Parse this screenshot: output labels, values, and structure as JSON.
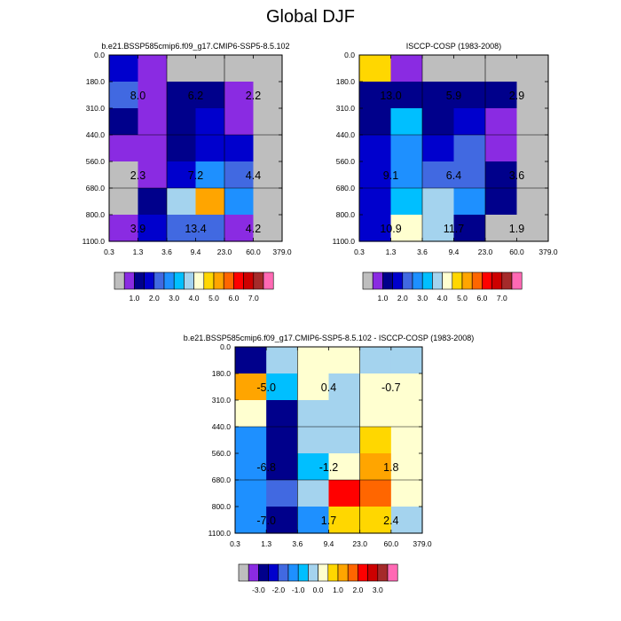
{
  "figure_title": "Global DJF",
  "chart_data": [
    {
      "type": "heatmap",
      "title": "b.e21.BSSP585cmip6.f09_g17.CMIP6-SSP5-8.5.102",
      "x_ticks": [
        "0.3",
        "1.3",
        "3.6",
        "9.4",
        "23.0",
        "60.0",
        "379.0"
      ],
      "y_ticks": [
        "0.0",
        "180.0",
        "310.0",
        "440.0",
        "560.0",
        "680.0",
        "800.0",
        "1100.0"
      ],
      "cells": [
        [
          "#0000cd",
          "#8a2be2",
          "#bebebe",
          "#bebebe",
          "#bebebe",
          "#bebebe"
        ],
        [
          "#4169e1",
          "#8a2be2",
          "#00008b",
          "#00008b",
          "#8a2be2",
          "#bebebe"
        ],
        [
          "#00008b",
          "#8a2be2",
          "#00008b",
          "#0000cd",
          "#8a2be2",
          "#bebebe"
        ],
        [
          "#8a2be2",
          "#8a2be2",
          "#00008b",
          "#0000cd",
          "#0000cd",
          "#bebebe"
        ],
        [
          "#bebebe",
          "#8a2be2",
          "#0000cd",
          "#1e90ff",
          "#4169e1",
          "#bebebe"
        ],
        [
          "#bebebe",
          "#00008b",
          "#a4d3ee",
          "#ffa500",
          "#1e90ff",
          "#bebebe"
        ],
        [
          "#8a2be2",
          "#0000cd",
          "#4169e1",
          "#4169e1",
          "#8a2be2",
          "#bebebe"
        ]
      ],
      "annotations": [
        {
          "text": "8.0",
          "x": 1.3,
          "y": 245.0
        },
        {
          "text": "6.2",
          "x": 9.4,
          "y": 245.0
        },
        {
          "text": "2.2",
          "x": 60.0,
          "y": 245.0
        },
        {
          "text": "2.3",
          "x": 1.3,
          "y": 620.0
        },
        {
          "text": "7.2",
          "x": 9.4,
          "y": 620.0
        },
        {
          "text": "4.4",
          "x": 60.0,
          "y": 620.0
        },
        {
          "text": "3.9",
          "x": 1.3,
          "y": 950.0
        },
        {
          "text": "13.4",
          "x": 9.4,
          "y": 950.0
        },
        {
          "text": "4.2",
          "x": 60.0,
          "y": 950.0
        }
      ]
    },
    {
      "type": "heatmap",
      "title": "ISCCP-COSP (1983-2008)",
      "x_ticks": [
        "0.3",
        "1.3",
        "3.6",
        "9.4",
        "23.0",
        "60.0",
        "379.0"
      ],
      "y_ticks": [
        "0.0",
        "180.0",
        "310.0",
        "440.0",
        "560.0",
        "680.0",
        "800.0",
        "1100.0"
      ],
      "cells": [
        [
          "#ffd700",
          "#8a2be2",
          "#bebebe",
          "#bebebe",
          "#bebebe",
          "#bebebe"
        ],
        [
          "#00008b",
          "#00008b",
          "#00008b",
          "#00008b",
          "#00008b",
          "#bebebe"
        ],
        [
          "#00008b",
          "#00bfff",
          "#00008b",
          "#0000cd",
          "#8a2be2",
          "#bebebe"
        ],
        [
          "#0000cd",
          "#1e90ff",
          "#0000cd",
          "#4169e1",
          "#8a2be2",
          "#bebebe"
        ],
        [
          "#0000cd",
          "#1e90ff",
          "#4169e1",
          "#4169e1",
          "#00008b",
          "#bebebe"
        ],
        [
          "#0000cd",
          "#00bfff",
          "#a4d3ee",
          "#1e90ff",
          "#00008b",
          "#bebebe"
        ],
        [
          "#0000cd",
          "#ffffd0",
          "#a4d3ee",
          "#00008b",
          "#bebebe",
          "#bebebe"
        ]
      ],
      "annotations": [
        {
          "text": "13.0",
          "x": 1.3,
          "y": 245.0
        },
        {
          "text": "5.9",
          "x": 9.4,
          "y": 245.0
        },
        {
          "text": "2.9",
          "x": 60.0,
          "y": 245.0
        },
        {
          "text": "9.1",
          "x": 1.3,
          "y": 620.0
        },
        {
          "text": "6.4",
          "x": 9.4,
          "y": 620.0
        },
        {
          "text": "3.6",
          "x": 60.0,
          "y": 620.0
        },
        {
          "text": "10.9",
          "x": 1.3,
          "y": 950.0
        },
        {
          "text": "11.7",
          "x": 9.4,
          "y": 950.0
        },
        {
          "text": "1.9",
          "x": 60.0,
          "y": 950.0
        }
      ]
    },
    {
      "type": "heatmap",
      "title": "b.e21.BSSP585cmip6.f09_g17.CMIP6-SSP5-8.5.102 - ISCCP-COSP (1983-2008)",
      "x_ticks": [
        "0.3",
        "1.3",
        "3.6",
        "9.4",
        "23.0",
        "60.0",
        "379.0"
      ],
      "y_ticks": [
        "0.0",
        "180.0",
        "310.0",
        "440.0",
        "560.0",
        "680.0",
        "800.0",
        "1100.0"
      ],
      "cells": [
        [
          "#00008b",
          "#a4d3ee",
          "#ffffd0",
          "#ffffd0",
          "#a4d3ee",
          "#a4d3ee"
        ],
        [
          "#ffa500",
          "#00bfff",
          "#ffffd0",
          "#a4d3ee",
          "#ffffd0",
          "#ffffd0"
        ],
        [
          "#ffffd0",
          "#00008b",
          "#a4d3ee",
          "#a4d3ee",
          "#ffffd0",
          "#ffffd0"
        ],
        [
          "#1e90ff",
          "#00008b",
          "#a4d3ee",
          "#a4d3ee",
          "#ffd700",
          "#ffffd0"
        ],
        [
          "#1e90ff",
          "#00008b",
          "#00bfff",
          "#ffffd0",
          "#ffa500",
          "#ffffd0"
        ],
        [
          "#1e90ff",
          "#4169e1",
          "#a4d3ee",
          "#ff0000",
          "#ff6600",
          "#ffffd0"
        ],
        [
          "#1e90ff",
          "#00008b",
          "#1e90ff",
          "#ffd700",
          "#ffd700",
          "#a4d3ee"
        ]
      ],
      "annotations": [
        {
          "text": "-5.0",
          "x": 1.3,
          "y": 245.0
        },
        {
          "text": "0.4",
          "x": 9.4,
          "y": 245.0
        },
        {
          "text": "-0.7",
          "x": 60.0,
          "y": 245.0
        },
        {
          "text": "-6.8",
          "x": 1.3,
          "y": 620.0
        },
        {
          "text": "-1.2",
          "x": 9.4,
          "y": 620.0
        },
        {
          "text": "1.8",
          "x": 60.0,
          "y": 620.0
        },
        {
          "text": "-7.0",
          "x": 1.3,
          "y": 950.0
        },
        {
          "text": "1.7",
          "x": 9.4,
          "y": 950.0
        },
        {
          "text": "2.4",
          "x": 60.0,
          "y": 950.0
        }
      ]
    }
  ],
  "colorbars": [
    {
      "colors": [
        "#bebebe",
        "#8a2be2",
        "#00008b",
        "#0000cd",
        "#4169e1",
        "#1e90ff",
        "#00bfff",
        "#a4d3ee",
        "#ffffd0",
        "#ffd700",
        "#ffa500",
        "#ff6600",
        "#ff0000",
        "#cd0000",
        "#a52a2a",
        "#ff69b4"
      ],
      "labels": [
        "1.0",
        "2.0",
        "3.0",
        "4.0",
        "5.0",
        "6.0",
        "7.0"
      ]
    },
    {
      "colors": [
        "#bebebe",
        "#8a2be2",
        "#00008b",
        "#0000cd",
        "#4169e1",
        "#1e90ff",
        "#00bfff",
        "#a4d3ee",
        "#ffffd0",
        "#ffd700",
        "#ffa500",
        "#ff6600",
        "#ff0000",
        "#cd0000",
        "#a52a2a",
        "#ff69b4"
      ],
      "labels": [
        "1.0",
        "2.0",
        "3.0",
        "4.0",
        "5.0",
        "6.0",
        "7.0"
      ]
    },
    {
      "colors": [
        "#bebebe",
        "#8a2be2",
        "#00008b",
        "#0000cd",
        "#4169e1",
        "#1e90ff",
        "#00bfff",
        "#a4d3ee",
        "#ffffd0",
        "#ffd700",
        "#ffa500",
        "#ff6600",
        "#ff0000",
        "#cd0000",
        "#a52a2a",
        "#ff69b4"
      ],
      "labels": [
        "-3.0",
        "-2.0",
        "-1.0",
        "0.0",
        "1.0",
        "2.0",
        "3.0"
      ]
    }
  ]
}
